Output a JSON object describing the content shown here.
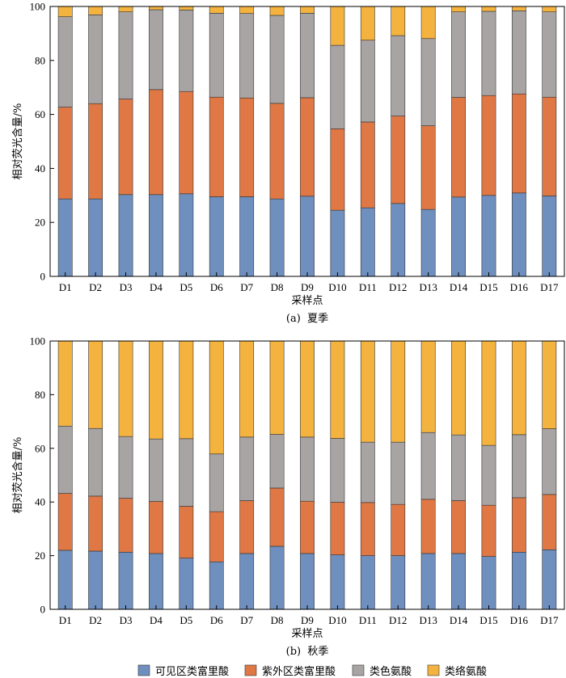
{
  "colors": {
    "visible_humic": "#6f8fbf",
    "uv_humic": "#e07845",
    "tryptophan": "#a9a4a4",
    "tyrosine": "#f4b33e"
  },
  "legend": [
    "可见区类富里酸",
    "紫外区类富里酸",
    "类色氨酸",
    "类络氨酸"
  ],
  "chart_data": [
    {
      "type": "bar",
      "stacked": true,
      "caption": "(a)  夏季",
      "xlabel": "采样点",
      "ylabel": "相对荧光含量/%",
      "ylim": [
        0,
        100
      ],
      "yticks": [
        0,
        20,
        40,
        60,
        80,
        100
      ],
      "categories": [
        "D1",
        "D2",
        "D3",
        "D4",
        "D5",
        "D6",
        "D7",
        "D8",
        "D9",
        "D10",
        "D11",
        "D12",
        "D13",
        "D14",
        "D15",
        "D16",
        "D17"
      ],
      "series": [
        {
          "name": "可见区类富里酸",
          "values": [
            28.7,
            28.7,
            30.3,
            30.3,
            30.6,
            29.5,
            29.5,
            28.7,
            29.7,
            24.5,
            25.4,
            27.0,
            24.8,
            29.4,
            30.0,
            30.9,
            29.8
          ]
        },
        {
          "name": "紫外区类富里酸",
          "values": [
            34.0,
            35.3,
            35.4,
            38.9,
            37.9,
            36.9,
            36.6,
            35.4,
            36.5,
            30.2,
            31.8,
            32.4,
            31.0,
            36.9,
            37.0,
            36.7,
            36.6
          ]
        },
        {
          "name": "类色氨酸",
          "values": [
            33.5,
            32.9,
            32.3,
            29.6,
            30.2,
            31.1,
            31.3,
            32.6,
            31.3,
            30.9,
            30.3,
            29.8,
            32.3,
            31.7,
            31.2,
            30.8,
            31.6
          ]
        },
        {
          "name": "类络氨酸",
          "values": [
            3.8,
            3.1,
            2.0,
            1.2,
            1.3,
            2.5,
            2.6,
            3.3,
            2.5,
            14.4,
            12.5,
            10.8,
            11.9,
            2.0,
            1.8,
            1.6,
            2.0
          ]
        }
      ]
    },
    {
      "type": "bar",
      "stacked": true,
      "caption": "(b)  秋季",
      "xlabel": "采样点",
      "ylabel": "相对荧光含量/%",
      "ylim": [
        0,
        100
      ],
      "yticks": [
        0,
        20,
        40,
        60,
        80,
        100
      ],
      "categories": [
        "D1",
        "D2",
        "D3",
        "D4",
        "D5",
        "D6",
        "D7",
        "D8",
        "D9",
        "D10",
        "D11",
        "D12",
        "D13",
        "D14",
        "D15",
        "D16",
        "D17"
      ],
      "series": [
        {
          "name": "可见区类富里酸",
          "values": [
            22.0,
            21.7,
            21.3,
            20.8,
            19.1,
            17.7,
            20.8,
            23.5,
            20.8,
            20.3,
            20.0,
            20.0,
            20.8,
            20.8,
            19.7,
            21.3,
            22.2
          ]
        },
        {
          "name": "紫外区类富里酸",
          "values": [
            21.2,
            20.5,
            20.1,
            19.4,
            19.3,
            18.7,
            19.7,
            21.7,
            19.5,
            19.6,
            19.8,
            19.1,
            20.2,
            19.7,
            19.1,
            20.3,
            20.6
          ]
        },
        {
          "name": "类色氨酸",
          "values": [
            25.1,
            25.2,
            23.0,
            23.3,
            25.2,
            21.5,
            23.7,
            20.0,
            23.9,
            23.8,
            22.5,
            23.2,
            24.9,
            24.5,
            22.3,
            23.5,
            24.5
          ]
        },
        {
          "name": "类络氨酸",
          "values": [
            31.7,
            32.6,
            35.6,
            36.5,
            36.4,
            42.1,
            35.8,
            34.8,
            35.8,
            36.3,
            37.7,
            37.7,
            34.1,
            35.0,
            38.9,
            34.9,
            32.7
          ]
        }
      ]
    }
  ]
}
